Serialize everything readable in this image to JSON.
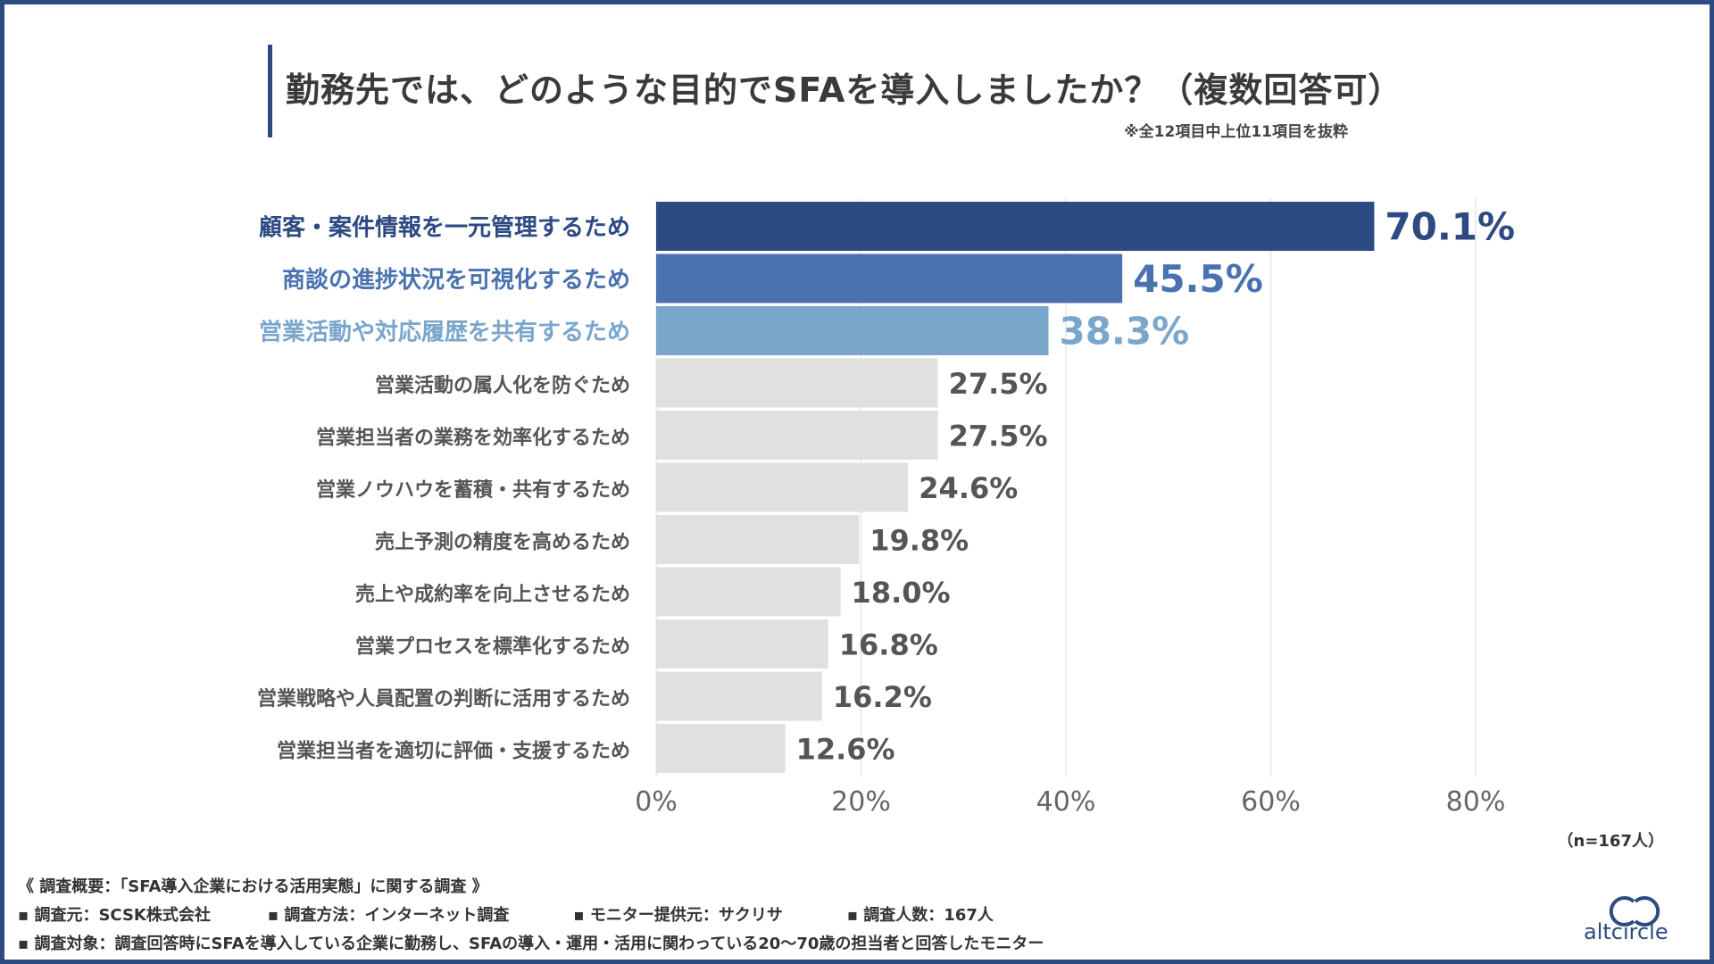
{
  "title": "勤務先では、どのような目的でSFAを導入しましたか？（複数回答可）",
  "note": "※全12項目中上位11項目を抜粋",
  "sample": "（n=167人）",
  "colors": {
    "rank1": "#2d4a82",
    "rank2": "#4a72b0",
    "rank3": "#7aa6cc",
    "other_bar": "#e0e0e0",
    "other_text": "#555555",
    "grid": "#e6e6e6",
    "frame": "#2d4a82"
  },
  "chart_data": {
    "type": "bar",
    "orientation": "horizontal",
    "categories": [
      "顧客・案件情報を一元管理するため",
      "商談の進捗状況を可視化するため",
      "営業活動や対応履歴を共有するため",
      "営業活動の属人化を防ぐため",
      "営業担当者の業務を効率化するため",
      "営業ノウハウを蓄積・共有するため",
      "売上予測の精度を高めるため",
      "売上や成約率を向上させるため",
      "営業プロセスを標準化するため",
      "営業戦略や人員配置の判断に活用するため",
      "営業担当者を適切に評価・支援するため"
    ],
    "values": [
      70.1,
      45.5,
      38.3,
      27.5,
      27.5,
      24.6,
      19.8,
      18.0,
      16.8,
      16.2,
      12.6
    ],
    "value_labels": [
      "70.1%",
      "45.5%",
      "38.3%",
      "27.5%",
      "27.5%",
      "24.6%",
      "19.8%",
      "18.0%",
      "16.8%",
      "16.2%",
      "12.6%"
    ],
    "xlim": [
      0,
      80
    ],
    "ticks": [
      0,
      20,
      40,
      60,
      80
    ],
    "tick_labels": [
      "0%",
      "20%",
      "40%",
      "60%",
      "80%"
    ],
    "grid": true
  },
  "survey": {
    "heading": "《 調査概要：「SFA導入企業における活用実態」に関する調査 》",
    "items": [
      "▪ 調査元：SCSK株式会社",
      "▪ 調査方法：インターネット調査",
      "▪ モニター提供元：サクリサ",
      "▪ 調査人数：167人"
    ],
    "target": "▪ 調査対象：調査回答時にSFAを導入している企業に勤務し、SFAの導入・運用・活用に関わっている20〜70歳の担当者と回答したモニター"
  },
  "logo": {
    "icon": "altcircle-logo-icon",
    "text": "altcircle"
  }
}
